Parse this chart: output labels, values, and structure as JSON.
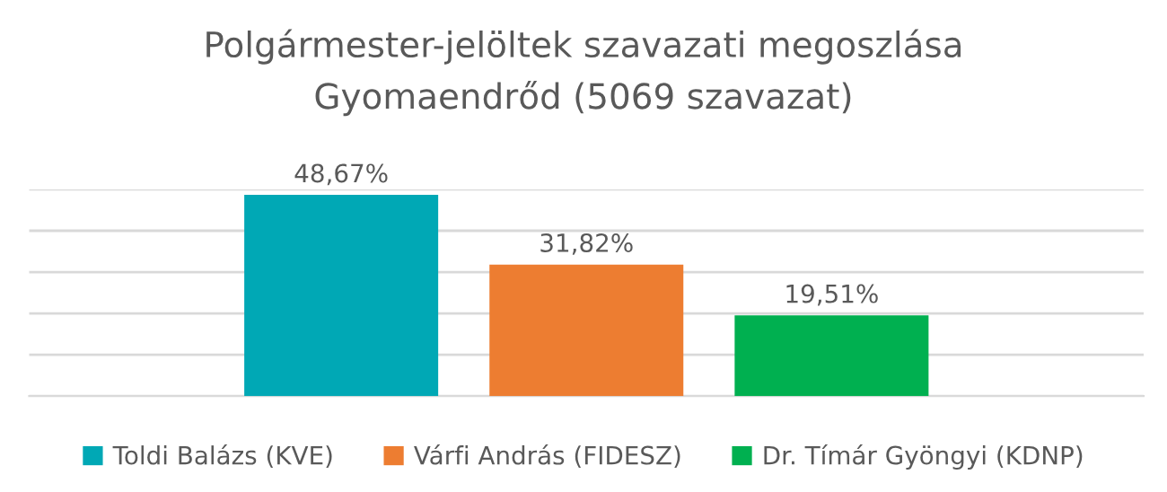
{
  "chart_data": {
    "type": "bar",
    "title": "Polgármester-jelöltek szavazati megoszlása",
    "subtitle": "Gyomaendrőd (5069 szavazat)",
    "categories": [
      null
    ],
    "series": [
      {
        "name": "Toldi Balázs (KVE)",
        "color": "#00a8b5",
        "values": [
          48.67
        ],
        "value_labels": [
          "48,67%"
        ]
      },
      {
        "name": "Várfi András (FIDESZ)",
        "color": "#ed7d31",
        "values": [
          31.82
        ],
        "value_labels": [
          "31,82%"
        ]
      },
      {
        "name": "Dr. Tímár Gyöngyi (KDNP)",
        "color": "#00b050",
        "values": [
          19.51
        ],
        "value_labels": [
          "19,51%"
        ]
      }
    ],
    "ylim": [
      0,
      50
    ],
    "yticks": [
      {
        "value": 0,
        "label": null
      },
      {
        "value": 10,
        "label": null
      },
      {
        "value": 20,
        "label": null
      },
      {
        "value": 30,
        "label": null
      },
      {
        "value": 40,
        "label": null
      },
      {
        "value": 50,
        "label": null
      }
    ],
    "grid": "y",
    "legend": "bottom"
  }
}
